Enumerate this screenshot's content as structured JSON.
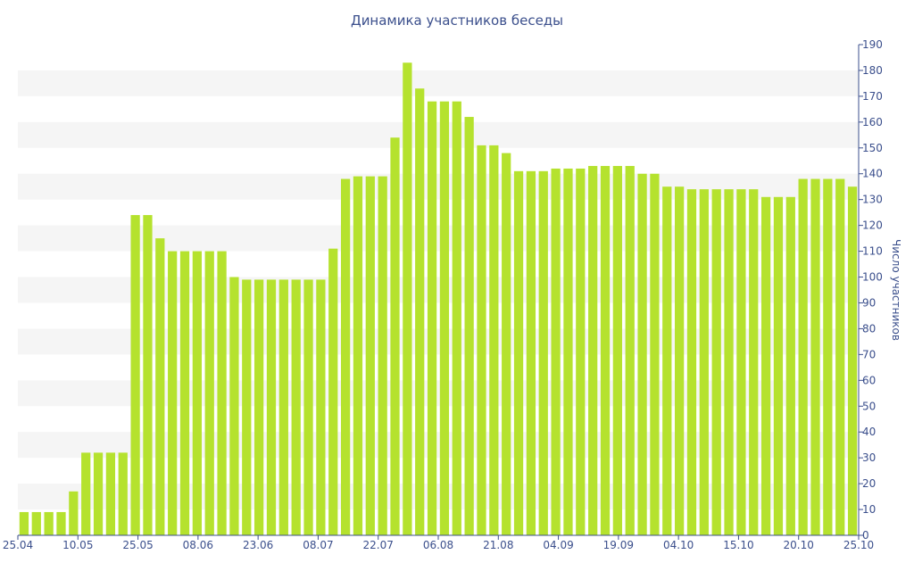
{
  "chart_data": {
    "type": "bar",
    "title": "Динамика участников беседы",
    "xlabel": "",
    "ylabel": "Число участников",
    "ylim": [
      0,
      190
    ],
    "y_ticks": [
      0,
      10,
      20,
      30,
      40,
      50,
      60,
      70,
      80,
      90,
      100,
      110,
      120,
      130,
      140,
      150,
      160,
      170,
      180,
      190
    ],
    "y_axis_side": "right",
    "grid": "alternating horizontal bands",
    "x_tick_labels": [
      "25.04",
      "10.05",
      "25.05",
      "08.06",
      "23.06",
      "08.07",
      "22.07",
      "06.08",
      "21.08",
      "04.09",
      "19.09",
      "04.10",
      "15.10",
      "20.10",
      "25.10"
    ],
    "values": [
      9,
      9,
      9,
      9,
      17,
      32,
      32,
      32,
      32,
      124,
      124,
      115,
      110,
      110,
      110,
      110,
      110,
      100,
      99,
      99,
      99,
      99,
      99,
      99,
      99,
      111,
      138,
      139,
      139,
      139,
      154,
      183,
      173,
      168,
      168,
      168,
      162,
      151,
      151,
      148,
      141,
      141,
      141,
      142,
      142,
      142,
      143,
      143,
      143,
      143,
      140,
      140,
      135,
      135,
      134,
      134,
      134,
      134,
      134,
      134,
      131,
      131,
      131,
      138,
      138,
      138,
      138,
      135
    ],
    "colors": {
      "bar": "#b5e22e",
      "text": "#3b4f8c",
      "axis": "#3b4f8c",
      "band": "#f5f5f5"
    }
  }
}
